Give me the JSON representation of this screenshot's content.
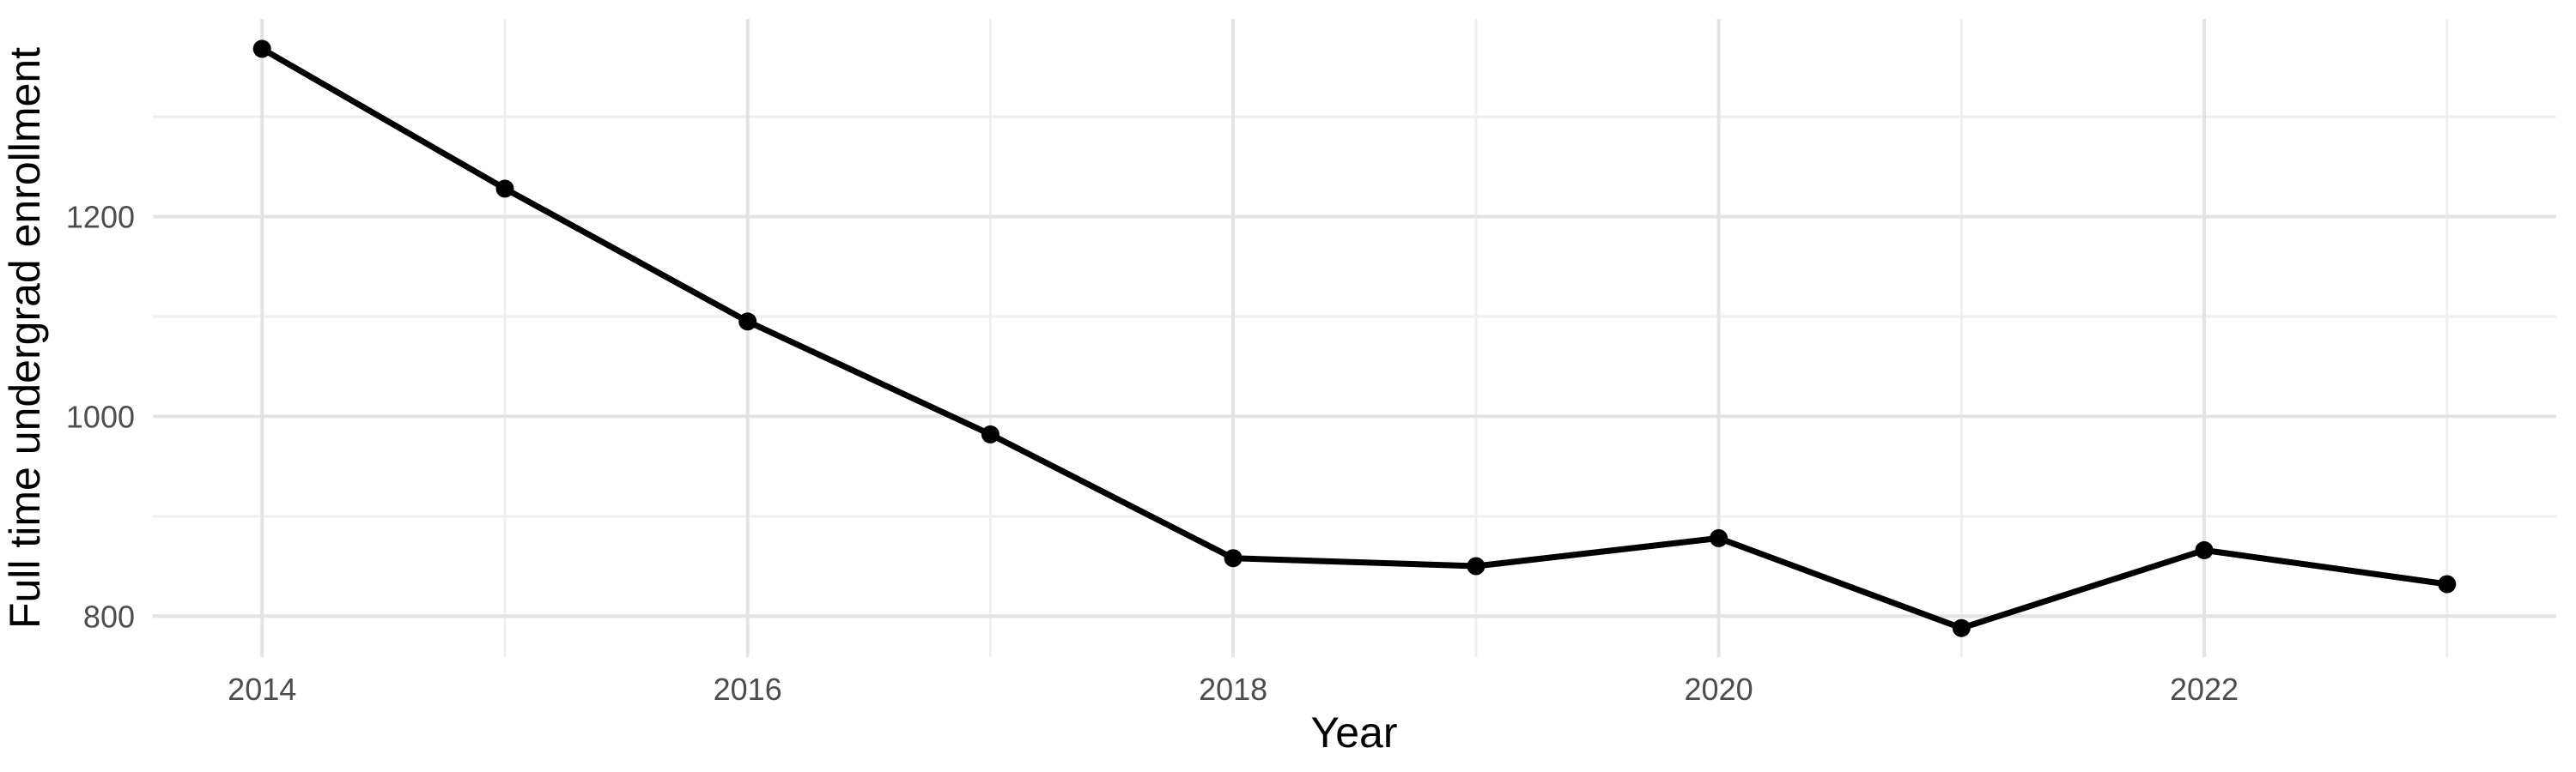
{
  "chart_data": {
    "type": "line",
    "title": "",
    "xlabel": "Year",
    "ylabel": "Full time undergrad enrollment",
    "x": [
      2014,
      2015,
      2016,
      2017,
      2018,
      2019,
      2020,
      2021,
      2022,
      2023
    ],
    "series": [
      {
        "values": [
          1368,
          1228,
          1095,
          982,
          858,
          850,
          878,
          788,
          866,
          832
        ]
      }
    ],
    "xlim": [
      2013.55,
      2023.45
    ],
    "ylim": [
      759,
      1398
    ],
    "x_major_ticks": [
      2014,
      2016,
      2018,
      2020,
      2022
    ],
    "x_minor_gridlines": [
      2015,
      2017,
      2019,
      2021,
      2023
    ],
    "y_major_ticks": [
      800,
      1000,
      1200
    ],
    "y_minor_gridlines": [
      900,
      1100,
      1300
    ],
    "grid": "on",
    "legend": "none",
    "style": {
      "background": "#FFFFFF",
      "line_color": "#000000",
      "point_color": "#000000",
      "grid_major_color": "#E3E3E3",
      "grid_minor_color": "#EFEFEF",
      "tick_label_color": "#4D4D4D",
      "axis_title_color": "#000000"
    }
  }
}
